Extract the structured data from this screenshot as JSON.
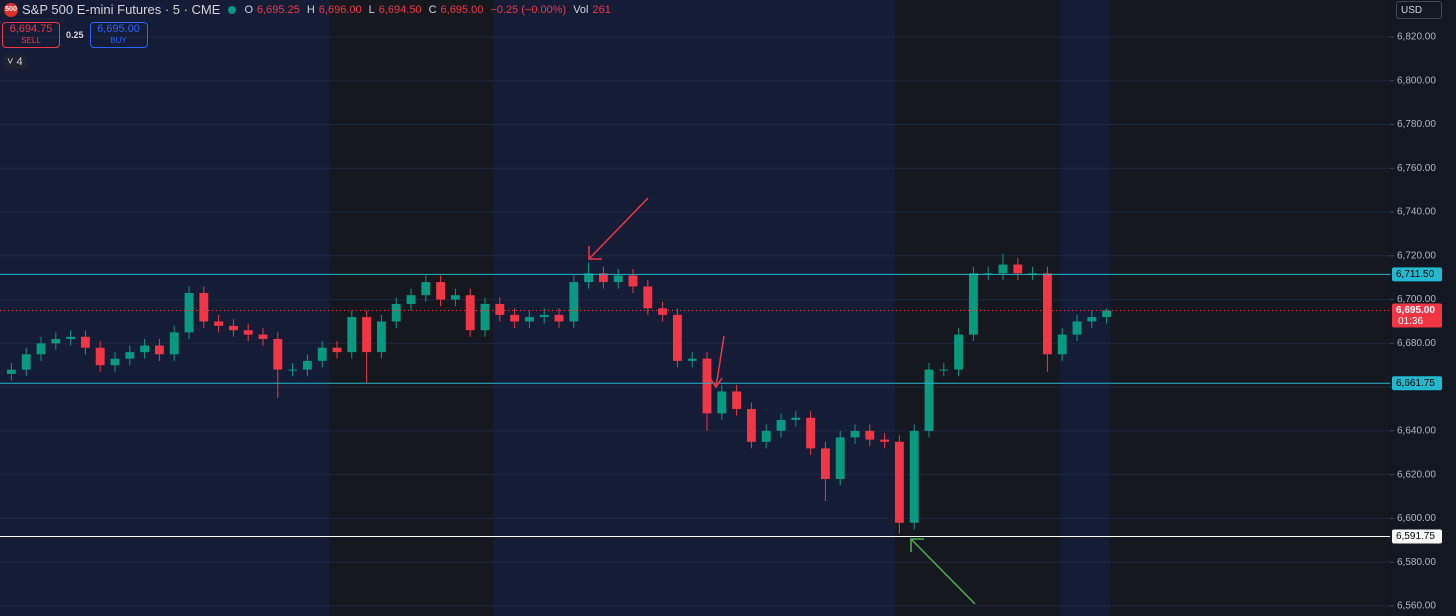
{
  "toolbar": {
    "symbol_badge": "500",
    "symbol": "S&P 500 E-mini Futures · 5 · CME",
    "ohlc": [
      {
        "key": "O",
        "value": "6,695.25"
      },
      {
        "key": "H",
        "value": "6,696.00"
      },
      {
        "key": "L",
        "value": "6,694.50"
      },
      {
        "key": "C",
        "value": "6,695.00"
      }
    ],
    "change": "−0.25 (−0.00%)",
    "volume_key": "Vol",
    "volume": "261",
    "sell_price": "6,694.75",
    "sell": "SELL",
    "spread": "0.25",
    "buy_price": "6,695.00",
    "buy": "BUY",
    "indicators_count": "4",
    "currency": "USD"
  },
  "chart_data": {
    "type": "candlestick",
    "up_color": "#089981",
    "down_color": "#f23645",
    "open": [
      6666,
      6668,
      6675,
      6680,
      6682,
      6683,
      6678,
      6670,
      6673,
      6676,
      6679,
      6675,
      6685,
      6703,
      6690,
      6688,
      6686,
      6684,
      6682,
      6668,
      6668,
      6672,
      6678,
      6676,
      6692,
      6676,
      6690,
      6698,
      6702,
      6708,
      6700,
      6702,
      6686,
      6698,
      6693,
      6690,
      6692,
      6693,
      6690,
      6708,
      6712,
      6708,
      6711,
      6706,
      6696,
      6693,
      6672,
      6673,
      6648,
      6658,
      6650,
      6635,
      6640,
      6645,
      6646,
      6632,
      6618,
      6637,
      6640,
      6636,
      6635,
      6598,
      6640,
      6668,
      6668,
      6684,
      6712,
      6712,
      6716,
      6712,
      6712,
      6675,
      6684,
      6690,
      6692
    ],
    "high": [
      6671,
      6678,
      6683,
      6685,
      6686,
      6686,
      6681,
      6676,
      6679,
      6682,
      6682,
      6688,
      6706,
      6706,
      6693,
      6691,
      6689,
      6687,
      6685,
      6671,
      6675,
      6681,
      6681,
      6695,
      6695,
      6693,
      6701,
      6705,
      6711,
      6711,
      6705,
      6705,
      6701,
      6701,
      6696,
      6695,
      6696,
      6696,
      6711,
      6717,
      6715,
      6714,
      6714,
      6709,
      6699,
      6696,
      6676,
      6676,
      6661,
      6661,
      6653,
      6643,
      6648,
      6649,
      6649,
      6635,
      6640,
      6643,
      6643,
      6639,
      6638,
      6643,
      6671,
      6671,
      6687,
      6715,
      6715,
      6721,
      6719,
      6715,
      6715,
      6687,
      6693,
      6695,
      6696
    ],
    "low": [
      6663,
      6665,
      6672,
      6677,
      6679,
      6675,
      6667,
      6667,
      6670,
      6673,
      6672,
      6672,
      6682,
      6687,
      6685,
      6683,
      6681,
      6679,
      6655,
      6665,
      6665,
      6669,
      6673,
      6673,
      6662,
      6673,
      6687,
      6695,
      6699,
      6697,
      6697,
      6683,
      6683,
      6690,
      6687,
      6687,
      6689,
      6687,
      6687,
      6705,
      6705,
      6705,
      6703,
      6693,
      6690,
      6669,
      6669,
      6640,
      6645,
      6647,
      6632,
      6632,
      6637,
      6642,
      6629,
      6608,
      6615,
      6634,
      6633,
      6632,
      6593,
      6595,
      6637,
      6665,
      6665,
      6681,
      6709,
      6709,
      6709,
      6709,
      6667,
      6672,
      6681,
      6687,
      6689
    ],
    "close": [
      6668,
      6675,
      6680,
      6682,
      6683,
      6678,
      6670,
      6673,
      6676,
      6679,
      6675,
      6685,
      6703,
      6690,
      6688,
      6686,
      6684,
      6682,
      6668,
      6668,
      6672,
      6678,
      6676,
      6692,
      6676,
      6690,
      6698,
      6702,
      6708,
      6700,
      6702,
      6686,
      6698,
      6693,
      6690,
      6692,
      6693,
      6690,
      6708,
      6712,
      6708,
      6711,
      6706,
      6696,
      6693,
      6672,
      6673,
      6648,
      6658,
      6650,
      6635,
      6640,
      6645,
      6646,
      6632,
      6618,
      6637,
      6640,
      6636,
      6635,
      6598,
      6640,
      6668,
      6668,
      6684,
      6712,
      6712,
      6716,
      6712,
      6712,
      6675,
      6684,
      6690,
      6692,
      6695
    ],
    "ylim": [
      6555.4,
      6836.9
    ],
    "yticks": [
      {
        "value": 6560,
        "label": "6,560.00"
      },
      {
        "value": 6580,
        "label": "6,580.00"
      },
      {
        "value": 6600,
        "label": "6,600.00"
      },
      {
        "value": 6620,
        "label": "6,620.00"
      },
      {
        "value": 6640,
        "label": "6,640.00"
      },
      {
        "value": 6660,
        "label": "6,660.00"
      },
      {
        "value": 6680,
        "label": "6,680.00"
      },
      {
        "value": 6700,
        "label": "6,700.00"
      },
      {
        "value": 6720,
        "label": "6,720.00"
      },
      {
        "value": 6740,
        "label": "6,740.00"
      },
      {
        "value": 6760,
        "label": "6,760.00"
      },
      {
        "value": 6780,
        "label": "6,780.00"
      },
      {
        "value": 6800,
        "label": "6,800.00"
      },
      {
        "value": 6820,
        "label": "6,820.00"
      }
    ],
    "grid": true,
    "levels": [
      {
        "value": 6711.5,
        "label": "6,711.50",
        "color": "#22b8cf"
      },
      {
        "value": 6661.75,
        "label": "6,661.75",
        "color": "#22b8cf"
      },
      {
        "value": 6591.75,
        "label": "6,591.75",
        "color": "#ffffff"
      }
    ],
    "last_price": {
      "value": 6695,
      "label": "6,695.00",
      "countdown": "01:36",
      "color": "#f23645"
    }
  }
}
